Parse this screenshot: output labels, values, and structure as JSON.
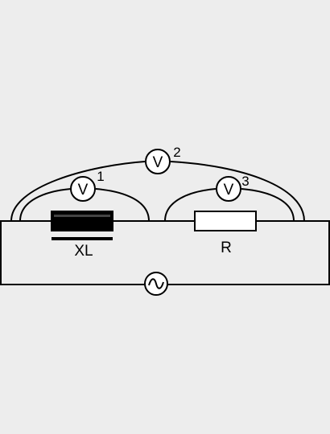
{
  "diagram": {
    "type": "ac-circuit",
    "colors": {
      "background": "#ededed",
      "wire": "#000000",
      "inductor_fill": "#000000",
      "resistor_fill": "#ffffff"
    },
    "components": {
      "inductor": {
        "label": "XL"
      },
      "resistor": {
        "label": "R"
      },
      "source": {
        "icon": "ac-source-icon",
        "symbol": "∼"
      }
    },
    "voltmeters": [
      {
        "symbol": "V",
        "number": "1"
      },
      {
        "symbol": "V",
        "number": "2"
      },
      {
        "symbol": "V",
        "number": "3"
      }
    ]
  }
}
